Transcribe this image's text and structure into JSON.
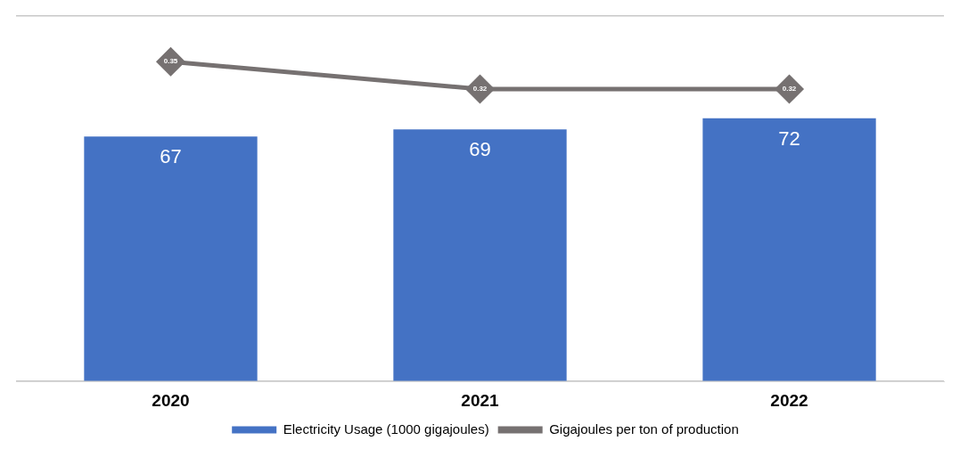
{
  "chart_data": {
    "type": "bar",
    "categories": [
      "2020",
      "2021",
      "2022"
    ],
    "series": [
      {
        "name": "Electricity Usage (1000 gigajoules)",
        "color": "#4472c4",
        "values": [
          67,
          69,
          72
        ]
      },
      {
        "name": "Gigajoules per ton of production",
        "type": "line",
        "axis": "y2",
        "color": "#767171",
        "values": [
          0.35,
          0.32,
          0.32
        ]
      }
    ],
    "marker": "diamond",
    "ylim": [
      0,
      100
    ],
    "yticks": [
      {
        "value": 0,
        "label": null
      },
      {
        "value": 100,
        "label": null
      }
    ],
    "tick_labels": "x",
    "grid": "y",
    "legend": "bottom",
    "data_labels": true
  }
}
